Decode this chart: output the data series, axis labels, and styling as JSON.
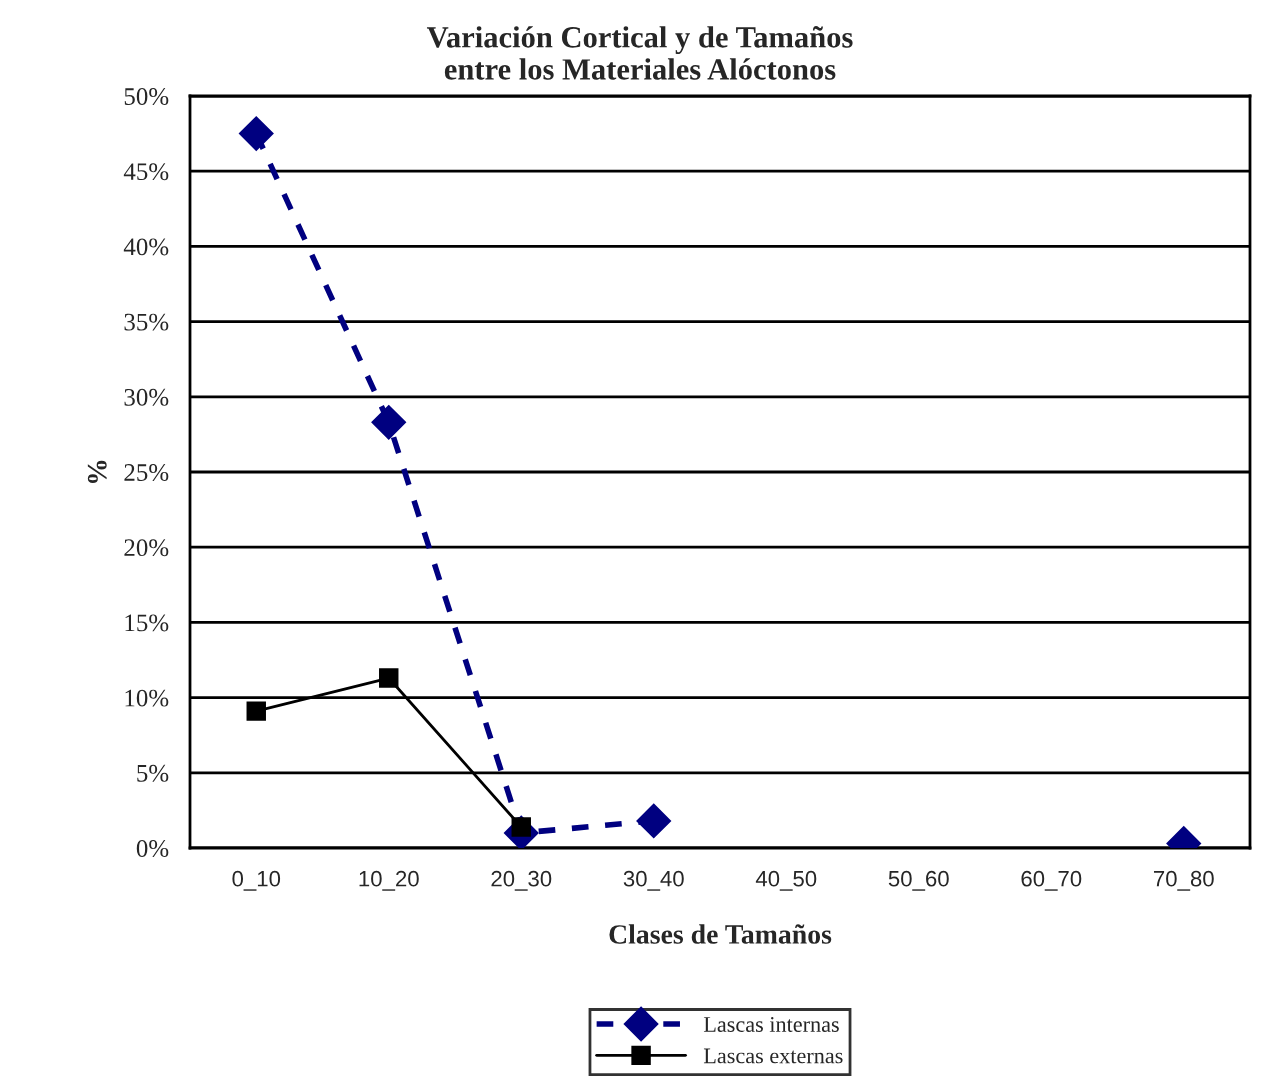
{
  "chart_data": {
    "type": "line",
    "title": "Variación Cortical y de Tamaños\nentre los Materiales Alóctonos",
    "xlabel": "Clases de Tamaños",
    "ylabel": "%",
    "categories": [
      "0_10",
      "10_20",
      "20_30",
      "30_40",
      "40_50",
      "50_60",
      "60_70",
      "70_80"
    ],
    "series": [
      {
        "name": "Lascas internas",
        "color": "#000080",
        "marker": "diamond",
        "line_style": "dashed",
        "values": [
          47.5,
          28.3,
          1.0,
          1.8,
          null,
          null,
          null,
          0.3
        ]
      },
      {
        "name": "Lascas externas",
        "color": "#000000",
        "marker": "square",
        "line_style": "solid",
        "values": [
          9.1,
          11.3,
          1.4,
          null,
          null,
          null,
          null,
          null
        ]
      }
    ],
    "ylim": [
      0,
      50
    ],
    "yticks": [
      {
        "value": 0,
        "label": "0%"
      },
      {
        "value": 5,
        "label": "5%"
      },
      {
        "value": 10,
        "label": "10%"
      },
      {
        "value": 15,
        "label": "15%"
      },
      {
        "value": 20,
        "label": "20%"
      },
      {
        "value": 25,
        "label": "25%"
      },
      {
        "value": 30,
        "label": "30%"
      },
      {
        "value": 35,
        "label": "35%"
      },
      {
        "value": 40,
        "label": "40%"
      },
      {
        "value": 45,
        "label": "45%"
      },
      {
        "value": 50,
        "label": "50%"
      }
    ],
    "grid": "y",
    "legend": "bottom"
  }
}
